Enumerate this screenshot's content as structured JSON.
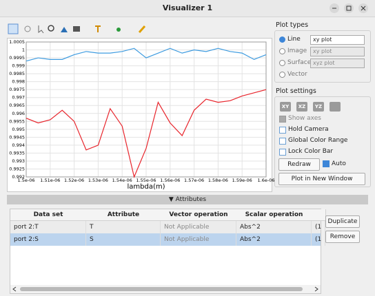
{
  "window": {
    "title": "Visualizer 1"
  },
  "chart_data": {
    "type": "line",
    "x_label": "lambda(m)",
    "x": [
      1.5e-06,
      1.505e-06,
      1.51e-06,
      1.515e-06,
      1.52e-06,
      1.525e-06,
      1.53e-06,
      1.535e-06,
      1.54e-06,
      1.545e-06,
      1.55e-06,
      1.555e-06,
      1.56e-06,
      1.565e-06,
      1.57e-06,
      1.575e-06,
      1.58e-06,
      1.585e-06,
      1.59e-06,
      1.595e-06,
      1.6e-06
    ],
    "series": [
      {
        "color": "#3d9be0",
        "values": [
          0.9993,
          0.9995,
          0.9994,
          0.9994,
          0.9997,
          0.9999,
          0.9998,
          0.9998,
          0.9999,
          1.0001,
          0.9995,
          0.9998,
          1.0001,
          0.9998,
          1.0,
          0.9999,
          1.0001,
          0.9999,
          0.9998,
          0.9994,
          0.9997
        ]
      },
      {
        "color": "#e8242b",
        "values": [
          0.9957,
          0.9954,
          0.9956,
          0.9962,
          0.9955,
          0.9937,
          0.994,
          0.9963,
          0.9952,
          0.992,
          0.9938,
          0.9967,
          0.9954,
          0.9946,
          0.9962,
          0.9969,
          0.9967,
          0.9968,
          0.9971,
          0.9973,
          0.9975
        ]
      }
    ],
    "xlim": [
      1.5e-06,
      1.6e-06
    ],
    "xticks": [
      {
        "value": 1.5e-06,
        "label": "1.5e-06"
      },
      {
        "value": 1.51e-06,
        "label": "1.51e-06"
      },
      {
        "value": 1.52e-06,
        "label": "1.52e-06"
      },
      {
        "value": 1.53e-06,
        "label": "1.53e-06"
      },
      {
        "value": 1.54e-06,
        "label": "1.54e-06"
      },
      {
        "value": 1.55e-06,
        "label": "1.55e-06"
      },
      {
        "value": 1.56e-06,
        "label": "1.56e-06"
      },
      {
        "value": 1.57e-06,
        "label": "1.57e-06"
      },
      {
        "value": 1.58e-06,
        "label": "1.58e-06"
      },
      {
        "value": 1.59e-06,
        "label": "1.59e-06"
      },
      {
        "value": 1.6e-06,
        "label": "1.6e-06"
      }
    ],
    "ylim": [
      0.992,
      1.0005
    ],
    "yticks": [
      0.992,
      0.9925,
      0.993,
      0.9935,
      0.994,
      0.9945,
      0.995,
      0.9955,
      0.996,
      0.9965,
      0.997,
      0.9975,
      0.998,
      0.9985,
      0.999,
      0.9995,
      1,
      1.0005
    ],
    "grid": true
  },
  "plot_types": {
    "title": "Plot types",
    "options": [
      {
        "label": "Line",
        "select": "xy plot"
      },
      {
        "label": "Image",
        "select": "xy plot"
      },
      {
        "label": "Surface",
        "select": "xyz plot"
      },
      {
        "label": "Vector"
      }
    ]
  },
  "plot_settings": {
    "title": "Plot settings",
    "buttons": [
      "XY",
      "XZ",
      "YZ"
    ],
    "checks": [
      "Show axes",
      "Hold Camera",
      "Global Color Range",
      "Lock Color Bar"
    ],
    "redraw": "Redraw",
    "auto": "Auto",
    "new_window": "Plot in New Window"
  },
  "attributes": {
    "title": "Attributes",
    "headers": [
      "Data set",
      "Attribute",
      "Vector operation",
      "Scalar operation"
    ],
    "rows": [
      [
        "port 2:T",
        "T",
        "Not Applicable",
        "Abs^2",
        "(1"
      ],
      [
        "port 2:S",
        "S",
        "Not Applicable",
        "Abs^2",
        "(1"
      ]
    ],
    "buttons": [
      "Duplicate",
      "Remove"
    ]
  }
}
